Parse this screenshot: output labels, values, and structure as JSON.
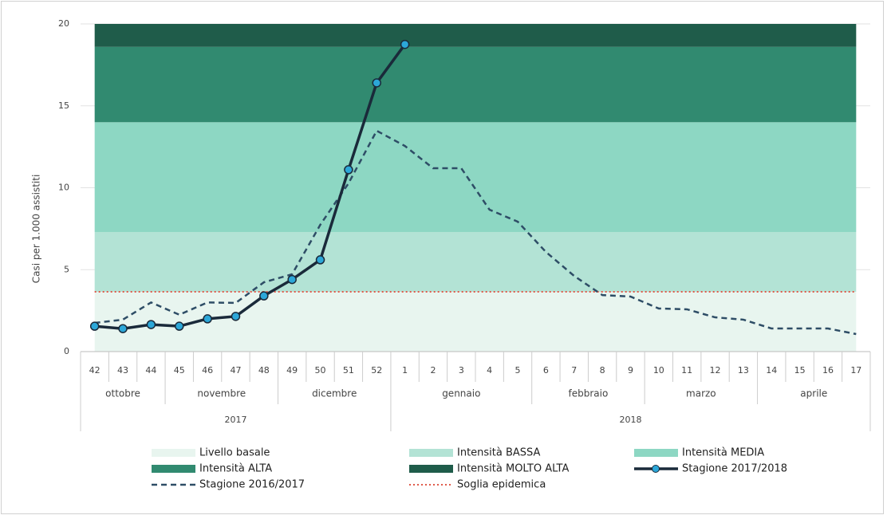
{
  "chart_data": {
    "type": "line",
    "y_label": "Casi per 1.000 assistiti",
    "categories": [
      "42",
      "43",
      "44",
      "45",
      "46",
      "47",
      "48",
      "49",
      "50",
      "51",
      "52",
      "1",
      "2",
      "3",
      "4",
      "5",
      "6",
      "7",
      "8",
      "9",
      "10",
      "11",
      "12",
      "13",
      "14",
      "15",
      "16",
      "17"
    ],
    "months": [
      {
        "label": "ottobre",
        "count": 3
      },
      {
        "label": "novembre",
        "count": 4
      },
      {
        "label": "dicembre",
        "count": 4
      },
      {
        "label": "gennaio",
        "count": 5
      },
      {
        "label": "febbraio",
        "count": 4
      },
      {
        "label": "marzo",
        "count": 4
      },
      {
        "label": "aprile",
        "count": 4
      }
    ],
    "years": [
      {
        "label": "2017",
        "count": 11
      },
      {
        "label": "2018",
        "count": 17
      }
    ],
    "bands": [
      {
        "name": "Livello basale",
        "color": "#e8f5ef",
        "range": [
          0,
          3.65
        ]
      },
      {
        "name": "Intensità BASSA",
        "color": "#b3e3d5",
        "range": [
          3.65,
          7.3
        ]
      },
      {
        "name": "Intensità MEDIA",
        "color": "#8dd7c3",
        "range": [
          7.3,
          14.0
        ]
      },
      {
        "name": "Intensità ALTA",
        "color": "#318a70",
        "range": [
          14.0,
          18.6
        ]
      },
      {
        "name": "Intensità MOLTO ALTA",
        "color": "#1f5c4a",
        "range": [
          18.6,
          20
        ]
      }
    ],
    "series": [
      {
        "name": "Stagione 2017/2018",
        "color": "#1a2a3a",
        "marker_color": "#2ca7d8",
        "style": "solid",
        "values": [
          1.55,
          1.4,
          1.65,
          1.55,
          2.0,
          2.15,
          3.4,
          4.4,
          5.6,
          11.1,
          16.4,
          18.75,
          null,
          null,
          null,
          null,
          null,
          null,
          null,
          null,
          null,
          null,
          null,
          null,
          null,
          null,
          null,
          null
        ]
      },
      {
        "name": "Stagione 2016/2017",
        "color": "#2e4d66",
        "style": "dashed",
        "values": [
          1.75,
          1.95,
          3.0,
          2.25,
          3.0,
          2.97,
          4.23,
          4.72,
          7.74,
          10.27,
          13.48,
          12.55,
          11.19,
          11.19,
          8.66,
          7.93,
          6.08,
          4.62,
          3.45,
          3.36,
          2.63,
          2.58,
          2.09,
          1.95,
          1.41,
          1.41,
          1.41,
          1.07
        ]
      }
    ],
    "threshold": {
      "name": "Soglia epidemica",
      "color": "#e05a4a",
      "value": 3.65
    },
    "ylim": [
      0,
      20
    ],
    "yticks": [
      0,
      5,
      10,
      15,
      20
    ],
    "grid": true
  }
}
